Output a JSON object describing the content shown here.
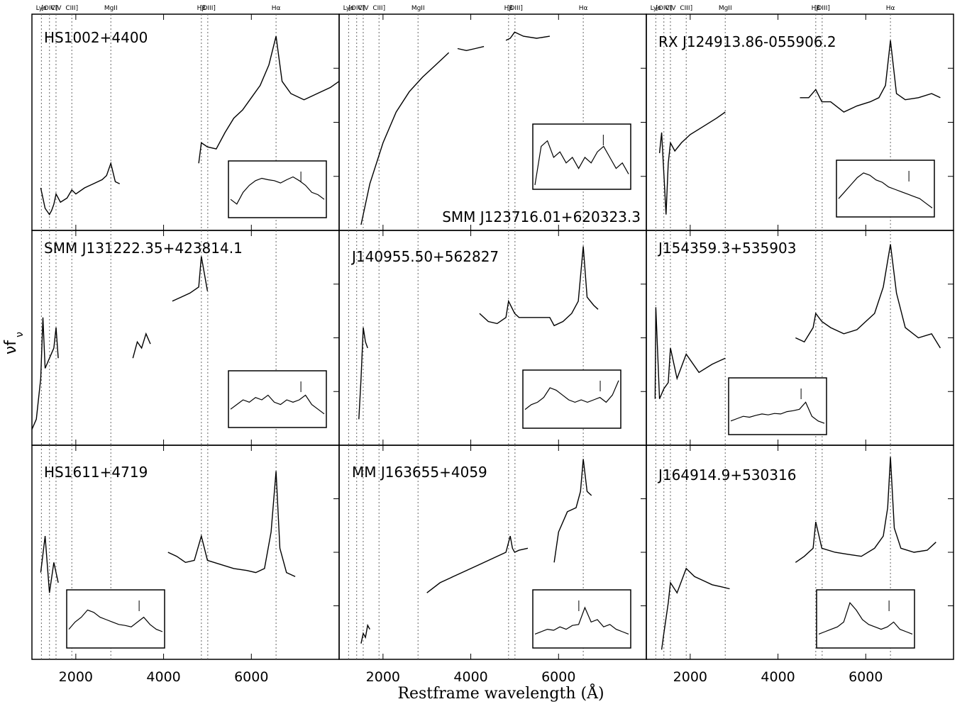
{
  "figure": {
    "xlabel": "Restframe wavelength (Å)",
    "ylabel": "νf",
    "ylabel_sub": "ν"
  },
  "line_labels": [
    "Lyα",
    "[OIV]",
    "CIV",
    "CIII]",
    "MgII",
    "Hβ",
    "[OIII]",
    "Hα"
  ],
  "chart_data": {
    "type": "line",
    "xlim": [
      1000,
      8000
    ],
    "xticks": [
      2000,
      4000,
      6000
    ],
    "grid": false,
    "line_markers_angstrom": [
      1216,
      1400,
      1549,
      1909,
      2798,
      4861,
      5007,
      6563
    ],
    "panels": [
      {
        "name": "HS1002+4400",
        "segments": [
          {
            "x": [
              1200,
              1300,
              1400,
              1450,
              1500,
              1549,
              1650,
              1800,
              1909,
              2000,
              2200,
              2400,
              2600,
              2700,
              2798,
              2900,
              3000
            ],
            "y": [
              0.18,
              0.08,
              0.05,
              0.07,
              0.1,
              0.15,
              0.11,
              0.13,
              0.17,
              0.15,
              0.18,
              0.2,
              0.22,
              0.24,
              0.3,
              0.21,
              0.2
            ]
          },
          {
            "x": [
              4800,
              4861,
              5000,
              5200,
              5400,
              5600,
              5800,
              6000,
              6200,
              6400,
              6563,
              6700,
              6900,
              7200,
              7500,
              7800,
              8000
            ],
            "y": [
              0.3,
              0.4,
              0.38,
              0.37,
              0.45,
              0.52,
              0.56,
              0.62,
              0.68,
              0.78,
              0.92,
              0.7,
              0.64,
              0.61,
              0.64,
              0.67,
              0.7
            ]
          }
        ],
        "inset": {
          "y": [
            0.3,
            0.2,
            0.45,
            0.6,
            0.7,
            0.75,
            0.72,
            0.7,
            0.65,
            0.72,
            0.78,
            0.7,
            0.6,
            0.45,
            0.4,
            0.3
          ]
        }
      },
      {
        "name": "SMM J123716.01+620323.3",
        "segments": [
          {
            "x": [
              1500,
              1700,
              2000,
              2300,
              2600,
              2900,
              3200,
              3400,
              3500
            ],
            "y": [
              0.0,
              0.2,
              0.4,
              0.55,
              0.65,
              0.72,
              0.78,
              0.82,
              0.84
            ]
          },
          {
            "x": [
              3700,
              3900,
              4100,
              4300
            ],
            "y": [
              0.86,
              0.85,
              0.86,
              0.87
            ]
          },
          {
            "x": [
              4800,
              4900,
              5000,
              5200,
              5500,
              5800
            ],
            "y": [
              0.9,
              0.91,
              0.94,
              0.92,
              0.91,
              0.92
            ]
          }
        ],
        "inset": {
          "y": [
            0.0,
            0.7,
            0.8,
            0.5,
            0.6,
            0.4,
            0.5,
            0.3,
            0.5,
            0.4,
            0.6,
            0.7,
            0.5,
            0.3,
            0.4,
            0.2
          ]
        }
      },
      {
        "name": "RX J124913.86-055906.2",
        "segments": [
          {
            "x": [
              1300,
              1350,
              1400,
              1450,
              1500,
              1549,
              1650,
              1800,
              2000,
              2300,
              2600,
              2800
            ],
            "y": [
              0.35,
              0.45,
              0.25,
              0.05,
              0.3,
              0.4,
              0.36,
              0.4,
              0.44,
              0.48,
              0.52,
              0.55
            ]
          },
          {
            "x": [
              4500,
              4700,
              4861,
              5000,
              5200,
              5500,
              5800,
              6100,
              6300,
              6450,
              6563,
              6700,
              6900,
              7200,
              7500,
              7700
            ],
            "y": [
              0.62,
              0.62,
              0.66,
              0.6,
              0.6,
              0.55,
              0.58,
              0.6,
              0.62,
              0.68,
              0.9,
              0.64,
              0.61,
              0.62,
              0.64,
              0.62
            ]
          }
        ],
        "inset": {
          "y": [
            0.3,
            0.45,
            0.6,
            0.75,
            0.85,
            0.8,
            0.7,
            0.65,
            0.55,
            0.5,
            0.45,
            0.4,
            0.35,
            0.3,
            0.2,
            0.1
          ]
        }
      },
      {
        "name": "SMM J131222.35+423814.1",
        "segments": [
          {
            "x": [
              1000,
              1100,
              1200,
              1250,
              1300,
              1400,
              1500,
              1549,
              1600
            ],
            "y": [
              0.05,
              0.1,
              0.3,
              0.6,
              0.35,
              0.4,
              0.45,
              0.55,
              0.4
            ]
          },
          {
            "x": [
              3300,
              3400,
              3500,
              3600,
              3700
            ],
            "y": [
              0.4,
              0.48,
              0.45,
              0.52,
              0.47
            ]
          },
          {
            "x": [
              4200,
              4400,
              4600,
              4800,
              4861,
              5000
            ],
            "y": [
              0.68,
              0.7,
              0.72,
              0.75,
              0.9,
              0.73
            ]
          }
        ],
        "inset": {
          "y": [
            0.3,
            0.4,
            0.5,
            0.45,
            0.55,
            0.5,
            0.6,
            0.45,
            0.4,
            0.5,
            0.45,
            0.5,
            0.6,
            0.4,
            0.3,
            0.2
          ]
        }
      },
      {
        "name": "J140955.50+562827",
        "segments": [
          {
            "x": [
              1450,
              1500,
              1549,
              1600,
              1650
            ],
            "y": [
              0.1,
              0.3,
              0.55,
              0.48,
              0.45
            ]
          },
          {
            "x": [
              4200,
              4400,
              4600,
              4800,
              4861,
              5000,
              5100,
              5800,
              5900,
              6100,
              6300,
              6450,
              6563,
              6650,
              6800,
              6900
            ],
            "y": [
              0.62,
              0.58,
              0.57,
              0.6,
              0.68,
              0.62,
              0.6,
              0.6,
              0.56,
              0.58,
              0.62,
              0.68,
              0.95,
              0.7,
              0.66,
              0.64
            ]
          }
        ],
        "inset": {
          "y": [
            0.3,
            0.4,
            0.45,
            0.55,
            0.75,
            0.7,
            0.6,
            0.5,
            0.45,
            0.5,
            0.45,
            0.5,
            0.55,
            0.45,
            0.6,
            0.9
          ]
        }
      },
      {
        "name": "J154359.3+535903",
        "segments": [
          {
            "x": [
              1200,
              1216,
              1300,
              1400,
              1500,
              1549,
              1700,
              1909,
              2200,
              2500,
              2800
            ],
            "y": [
              0.2,
              0.65,
              0.2,
              0.25,
              0.28,
              0.45,
              0.3,
              0.42,
              0.33,
              0.37,
              0.4
            ]
          },
          {
            "x": [
              4400,
              4600,
              4800,
              4861,
              5000,
              5200,
              5500,
              5800,
              6000,
              6200,
              6400,
              6563,
              6700,
              6900,
              7200,
              7500,
              7700
            ],
            "y": [
              0.5,
              0.48,
              0.55,
              0.62,
              0.58,
              0.55,
              0.52,
              0.54,
              0.58,
              0.62,
              0.75,
              0.96,
              0.72,
              0.55,
              0.5,
              0.52,
              0.45
            ]
          }
        ],
        "inset": {
          "y": [
            0.2,
            0.25,
            0.3,
            0.28,
            0.32,
            0.35,
            0.33,
            0.36,
            0.35,
            0.4,
            0.42,
            0.45,
            0.6,
            0.3,
            0.2,
            0.15
          ]
        }
      },
      {
        "name": "HS1611+4719",
        "segments": [
          {
            "x": [
              1200,
              1300,
              1400,
              1500,
              1600
            ],
            "y": [
              0.4,
              0.58,
              0.3,
              0.45,
              0.35
            ]
          },
          {
            "x": [
              4100,
              4300,
              4500,
              4700,
              4861,
              5000,
              5300,
              5600,
              5900,
              6100,
              6300,
              6450,
              6563,
              6650,
              6800,
              7000
            ],
            "y": [
              0.5,
              0.48,
              0.45,
              0.46,
              0.58,
              0.46,
              0.44,
              0.42,
              0.41,
              0.4,
              0.42,
              0.6,
              0.9,
              0.52,
              0.4,
              0.38
            ]
          }
        ],
        "inset": {
          "y": [
            0.3,
            0.45,
            0.55,
            0.7,
            0.65,
            0.55,
            0.5,
            0.45,
            0.4,
            0.38,
            0.35,
            0.45,
            0.55,
            0.4,
            0.3,
            0.25
          ]
        }
      },
      {
        "name": "MM J163655+4059",
        "segments": [
          {
            "x": [
              1500,
              1550,
              1600,
              1650,
              1700
            ],
            "y": [
              0.05,
              0.1,
              0.08,
              0.14,
              0.12
            ]
          },
          {
            "x": [
              3000,
              3300,
              3600,
              3900,
              4200,
              4500,
              4800,
              4900,
              4950,
              5000,
              5100,
              5300
            ],
            "y": [
              0.3,
              0.35,
              0.38,
              0.41,
              0.44,
              0.47,
              0.5,
              0.58,
              0.52,
              0.5,
              0.51,
              0.52
            ]
          },
          {
            "x": [
              5900,
              6000,
              6200,
              6400,
              6500,
              6563,
              6650,
              6750
            ],
            "y": [
              0.45,
              0.6,
              0.7,
              0.72,
              0.8,
              0.96,
              0.8,
              0.78
            ]
          }
        ],
        "inset": {
          "y": [
            0.2,
            0.25,
            0.3,
            0.28,
            0.35,
            0.3,
            0.38,
            0.4,
            0.75,
            0.45,
            0.5,
            0.35,
            0.4,
            0.3,
            0.25,
            0.2
          ]
        }
      },
      {
        "name": "J164914.9+530316",
        "segments": [
          {
            "x": [
              1350,
              1400,
              1500,
              1549,
              1700,
              1909,
              2100,
              2300,
              2500,
              2700,
              2900
            ],
            "y": [
              0.02,
              0.1,
              0.25,
              0.35,
              0.3,
              0.42,
              0.38,
              0.36,
              0.34,
              0.33,
              0.32
            ]
          },
          {
            "x": [
              4400,
              4600,
              4800,
              4861,
              5000,
              5300,
              5600,
              5900,
              6200,
              6400,
              6500,
              6563,
              6650,
              6800,
              7100,
              7400,
              7600
            ],
            "y": [
              0.45,
              0.48,
              0.52,
              0.65,
              0.52,
              0.5,
              0.49,
              0.48,
              0.52,
              0.58,
              0.72,
              0.97,
              0.62,
              0.52,
              0.5,
              0.51,
              0.55
            ]
          }
        ],
        "inset": {
          "y": [
            0.2,
            0.25,
            0.3,
            0.35,
            0.45,
            0.85,
            0.7,
            0.5,
            0.4,
            0.35,
            0.3,
            0.35,
            0.45,
            0.3,
            0.25,
            0.2
          ]
        }
      }
    ]
  }
}
